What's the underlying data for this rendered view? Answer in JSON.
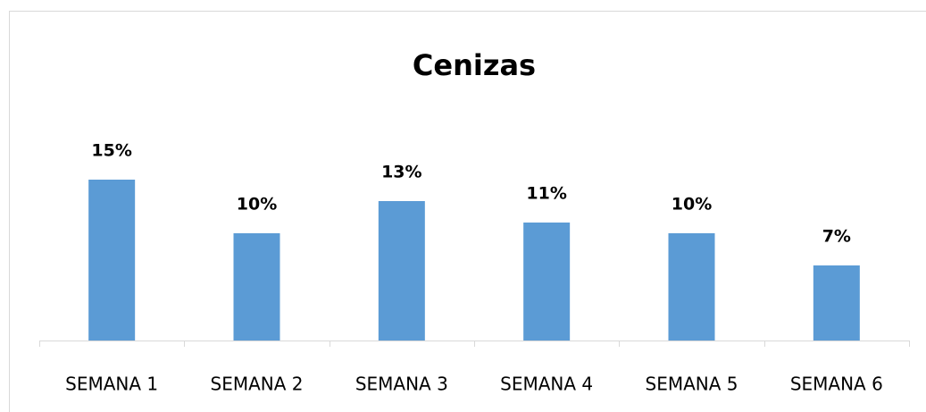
{
  "chart_data": {
    "type": "bar",
    "title": "Cenizas",
    "categories": [
      "SEMANA 1",
      "SEMANA 2",
      "SEMANA 3",
      "SEMANA 4",
      "SEMANA 5",
      "SEMANA 6"
    ],
    "values": [
      15,
      10,
      13,
      11,
      10,
      7
    ],
    "value_labels": [
      "15%",
      "10%",
      "13%",
      "11%",
      "10%",
      "7%"
    ],
    "color": "#5b9bd5"
  }
}
